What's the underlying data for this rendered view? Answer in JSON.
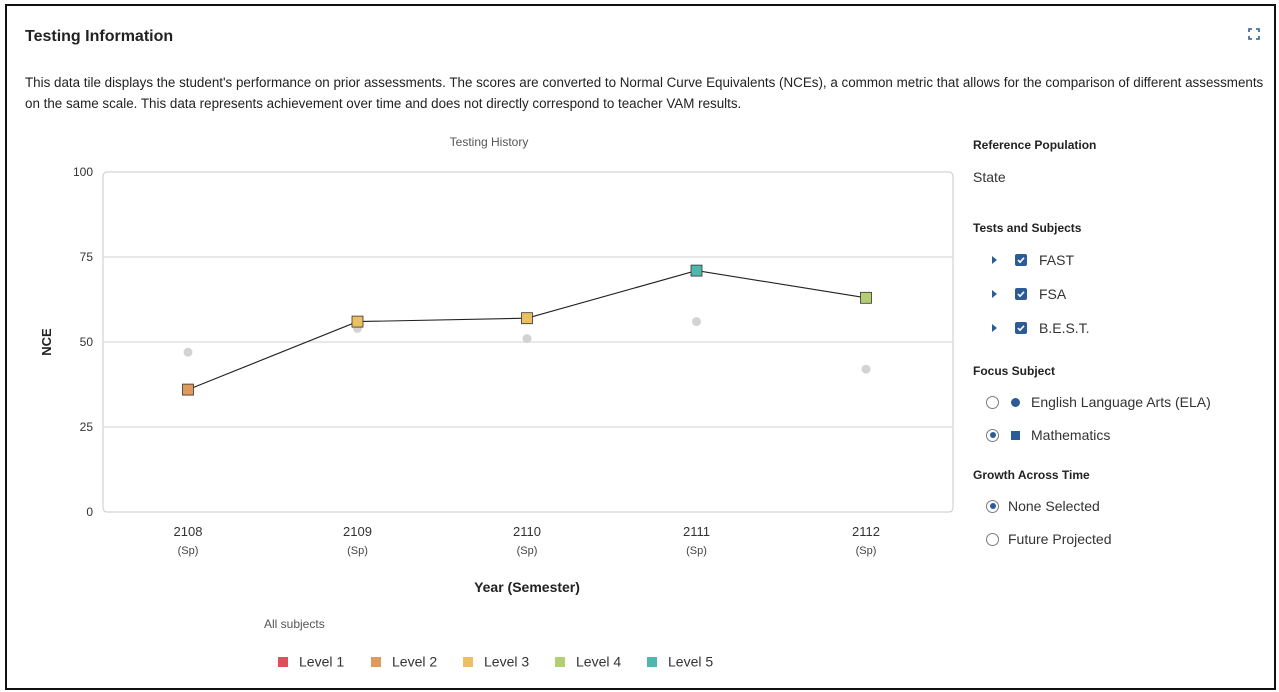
{
  "tile": {
    "title": "Testing Information",
    "expand_icon": "expand-icon",
    "description": "This data tile displays the student's performance on prior assessments. The scores are converted to Normal Curve Equivalents (NCEs), a common metric that allows for the comparison of different assessments on the same scale. This data represents achievement over time and does not directly correspond to teacher VAM results."
  },
  "chart_data": {
    "type": "line",
    "title": "Testing History",
    "xlabel": "Year (Semester)",
    "ylabel": "NCE",
    "ylim": [
      0,
      100
    ],
    "yticks": [
      0,
      25,
      50,
      75,
      100
    ],
    "grid": true,
    "categories": [
      {
        "year": "2108",
        "term": "(Sp)"
      },
      {
        "year": "2109",
        "term": "(Sp)"
      },
      {
        "year": "2110",
        "term": "(Sp)"
      },
      {
        "year": "2111",
        "term": "(Sp)"
      },
      {
        "year": "2112",
        "term": "(Sp)"
      }
    ],
    "series": [
      {
        "marker": "square",
        "values": [
          36,
          56,
          57,
          71,
          63
        ],
        "levels": [
          "Level 2",
          "Level 3",
          "Level 3",
          "Level 5",
          "Level 4"
        ]
      },
      {
        "marker": "circle",
        "color": "#d3d3d3",
        "values": [
          47,
          54,
          51,
          56,
          42
        ]
      }
    ],
    "legend": {
      "title": "All subjects",
      "placement": "bottom",
      "items": [
        {
          "label": "Level 1",
          "color": "#d9525a"
        },
        {
          "label": "Level 2",
          "color": "#e09a5e"
        },
        {
          "label": "Level 3",
          "color": "#ecc060"
        },
        {
          "label": "Level 4",
          "color": "#b4cc72"
        },
        {
          "label": "Level 5",
          "color": "#4fb8ad"
        }
      ]
    }
  },
  "panel": {
    "reference_population": {
      "title": "Reference Population",
      "value": "State"
    },
    "tests_and_subjects": {
      "title": "Tests and Subjects",
      "items": [
        {
          "label": "FAST",
          "checked": true
        },
        {
          "label": "FSA",
          "checked": true
        },
        {
          "label": "B.E.S.T.",
          "checked": true
        }
      ]
    },
    "focus_subject": {
      "title": "Focus Subject",
      "options": [
        {
          "label": "English Language Arts (ELA)",
          "selected": false,
          "marker": "circle"
        },
        {
          "label": "Mathematics",
          "selected": true,
          "marker": "square"
        }
      ]
    },
    "growth_across_time": {
      "title": "Growth Across Time",
      "options": [
        {
          "label": "None Selected",
          "selected": true
        },
        {
          "label": "Future Projected",
          "selected": false
        }
      ]
    }
  }
}
